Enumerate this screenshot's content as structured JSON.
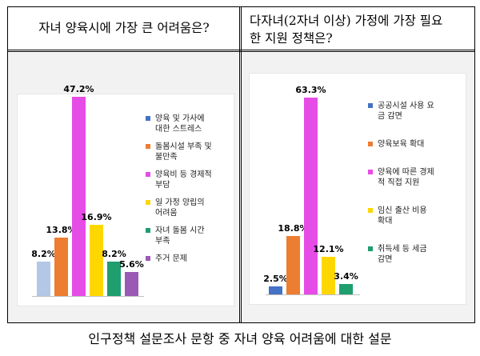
{
  "left_cell": {
    "header": "자녀 양육시에 가장 큰 어려움은?"
  },
  "right_cell": {
    "header_lines": [
      "다자녀(2자녀 이상) 가정에 가장 필요",
      "한 지원 정책은?"
    ]
  },
  "caption": "인구정책 설문조사 문항 중 자녀 양육 어려움에 대한 설문",
  "chart_data": [
    {
      "type": "bar",
      "title": "자녀 양육시에 가장 큰 어려움은?",
      "xlabel": "",
      "ylabel": "",
      "ylim": [
        0,
        50
      ],
      "grid": false,
      "legend_position": "right",
      "categories": [
        "양육 및 가사에\n대한 스트레스",
        "돌봄시설 부족 및\n불만족",
        "양육비 등 경제적\n부담",
        "일 가정 양립의\n어려움",
        "자녀 돌봄 시간\n부족",
        "주거 문제"
      ],
      "values": [
        8.2,
        13.8,
        47.2,
        16.9,
        8.2,
        5.6
      ],
      "labels": [
        "8.2%",
        "13.8%",
        "47.2%",
        "16.9%",
        "8.2%",
        "5.6%"
      ],
      "colors": [
        "#b4c7e7",
        "#ed7d31",
        "#e64ce6",
        "#ffd700",
        "#1f9e6e",
        "#9b59b6"
      ],
      "legend_colors": [
        "#4472c4",
        "#ed7d31",
        "#e64ce6",
        "#ffd700",
        "#1f9e6e",
        "#9b59b6"
      ]
    },
    {
      "type": "bar",
      "title": "다자녀(2자녀 이상) 가정에 가장 필요한 지원 정책은?",
      "xlabel": "",
      "ylabel": "",
      "ylim": [
        0,
        70
      ],
      "grid": false,
      "legend_position": "right",
      "categories": [
        "공공시설 사용 요\n금 감면",
        "양육보육 확대",
        "양육에 따른 경제\n적 직접 지원",
        "임신 출산 비용\n확대",
        "취득세 등 세금\n감면"
      ],
      "values": [
        2.5,
        18.8,
        63.3,
        12.1,
        3.4
      ],
      "labels": [
        "2.5%",
        "18.8%",
        "63.3%",
        "12.1%",
        "3.4%"
      ],
      "colors": [
        "#4472c4",
        "#ed7d31",
        "#e64ce6",
        "#ffd700",
        "#1f9e6e"
      ],
      "legend_colors": [
        "#4472c4",
        "#ed7d31",
        "#e64ce6",
        "#ffd700",
        "#1f9e6e"
      ]
    }
  ]
}
